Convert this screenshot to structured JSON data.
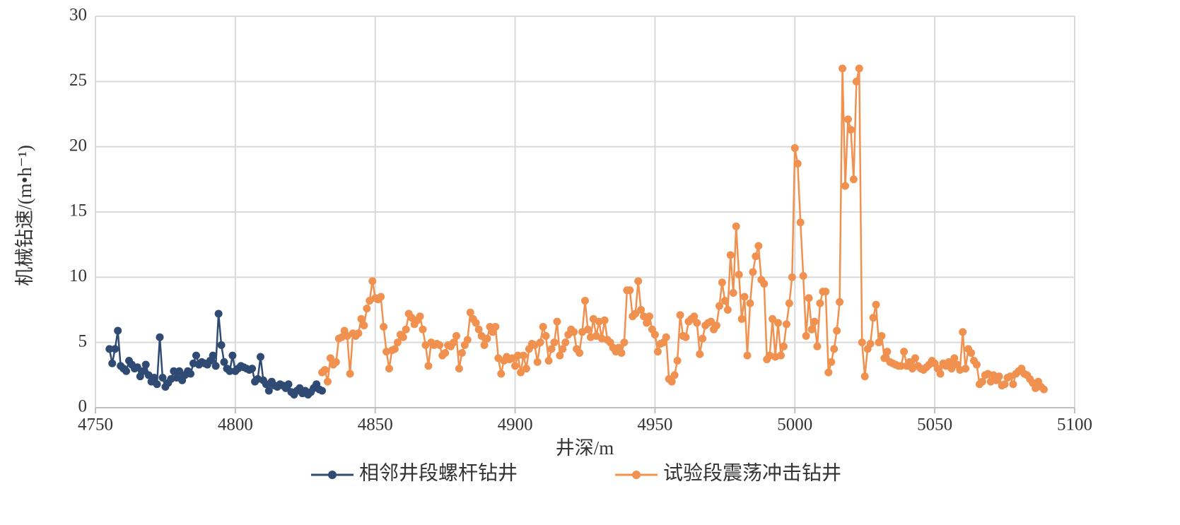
{
  "chart_data": {
    "type": "line",
    "xlabel": "井深/m",
    "ylabel": "机械钻速/(m•h⁻¹)",
    "xlim": [
      4750,
      5100
    ],
    "xticks": [
      4750,
      4800,
      4850,
      4900,
      4950,
      5000,
      5050,
      5100
    ],
    "ylim": [
      0,
      30
    ],
    "yticks": [
      0,
      5,
      10,
      15,
      20,
      25,
      30
    ],
    "grid": true,
    "legend": "bottom",
    "series": [
      {
        "name": "相邻井段螺杆钻井",
        "color": "#2f4b74",
        "x": [
          4755,
          4756,
          4757,
          4758,
          4759,
          4760,
          4761,
          4762,
          4763,
          4764,
          4765,
          4766,
          4767,
          4768,
          4769,
          4770,
          4771,
          4772,
          4773,
          4774,
          4775,
          4776,
          4777,
          4778,
          4779,
          4780,
          4781,
          4782,
          4783,
          4784,
          4785,
          4786,
          4787,
          4788,
          4789,
          4790,
          4791,
          4792,
          4793,
          4794,
          4795,
          4796,
          4797,
          4798,
          4799,
          4800,
          4801,
          4802,
          4803,
          4804,
          4805,
          4806,
          4807,
          4808,
          4809,
          4810,
          4811,
          4812,
          4813,
          4814,
          4815,
          4816,
          4817,
          4818,
          4819,
          4820,
          4821,
          4822,
          4823,
          4824,
          4825,
          4826,
          4827,
          4828,
          4829,
          4830,
          4831
        ],
        "values": [
          4.5,
          3.4,
          4.5,
          5.9,
          3.2,
          3.0,
          2.8,
          3.6,
          3.3,
          3.0,
          3.1,
          2.4,
          2.8,
          3.3,
          2.5,
          2.0,
          2.3,
          1.8,
          5.4,
          2.3,
          1.6,
          1.9,
          2.2,
          2.8,
          2.3,
          2.8,
          2.1,
          2.5,
          2.8,
          2.6,
          3.4,
          4.0,
          3.3,
          3.5,
          3.4,
          3.3,
          3.6,
          4.0,
          3.2,
          7.2,
          4.8,
          3.5,
          3.0,
          2.8,
          4.0,
          2.8,
          3.0,
          3.2,
          3.1,
          3.0,
          2.9,
          3.0,
          2.0,
          2.2,
          3.9,
          2.1,
          1.8,
          1.3,
          2.0,
          1.7,
          1.6,
          1.8,
          1.7,
          1.5,
          1.8,
          1.2,
          1.0,
          1.3,
          1.5,
          1.1,
          1.3,
          1.0,
          1.2,
          1.5,
          1.8,
          1.4,
          1.3
        ]
      },
      {
        "name": "试验段震荡冲击钻井",
        "color": "#f0914f",
        "x": [
          4831,
          4832,
          4833,
          4834,
          4835,
          4836,
          4837,
          4838,
          4839,
          4840,
          4841,
          4842,
          4843,
          4844,
          4845,
          4846,
          4847,
          4848,
          4849,
          4850,
          4851,
          4852,
          4853,
          4854,
          4855,
          4856,
          4857,
          4858,
          4859,
          4860,
          4861,
          4862,
          4863,
          4864,
          4865,
          4866,
          4867,
          4868,
          4869,
          4870,
          4871,
          4872,
          4873,
          4874,
          4875,
          4876,
          4877,
          4878,
          4879,
          4880,
          4881,
          4882,
          4883,
          4884,
          4885,
          4886,
          4887,
          4888,
          4889,
          4890,
          4891,
          4892,
          4893,
          4894,
          4895,
          4896,
          4897,
          4898,
          4899,
          4900,
          4901,
          4902,
          4903,
          4904,
          4905,
          4906,
          4907,
          4908,
          4909,
          4910,
          4911,
          4912,
          4913,
          4914,
          4915,
          4916,
          4917,
          4918,
          4919,
          4920,
          4921,
          4922,
          4923,
          4924,
          4925,
          4926,
          4927,
          4928,
          4929,
          4930,
          4931,
          4932,
          4933,
          4934,
          4935,
          4936,
          4937,
          4938,
          4939,
          4940,
          4941,
          4942,
          4943,
          4944,
          4945,
          4946,
          4947,
          4948,
          4949,
          4950,
          4951,
          4952,
          4953,
          4954,
          4955,
          4956,
          4957,
          4958,
          4959,
          4960,
          4961,
          4962,
          4963,
          4964,
          4965,
          4966,
          4967,
          4968,
          4969,
          4970,
          4971,
          4972,
          4973,
          4974,
          4975,
          4976,
          4977,
          4978,
          4979,
          4980,
          4981,
          4982,
          4983,
          4984,
          4985,
          4986,
          4987,
          4988,
          4989,
          4990,
          4991,
          4992,
          4993,
          4994,
          4995,
          4996,
          4997,
          4998,
          4999,
          5000,
          5001,
          5002,
          5003,
          5004,
          5005,
          5006,
          5007,
          5008,
          5009,
          5010,
          5011,
          5012,
          5013,
          5014,
          5015,
          5016,
          5017,
          5018,
          5019,
          5020,
          5021,
          5022,
          5023,
          5024,
          5025,
          5026,
          5027,
          5028,
          5029,
          5030,
          5031,
          5032,
          5033,
          5034,
          5035,
          5036,
          5037,
          5038,
          5039,
          5040,
          5041,
          5042,
          5043,
          5044,
          5045,
          5046,
          5047,
          5048,
          5049,
          5050,
          5051,
          5052,
          5053,
          5054,
          5055,
          5056,
          5057,
          5058,
          5059,
          5060,
          5061,
          5062,
          5063,
          5064,
          5065,
          5066,
          5067,
          5068,
          5069,
          5070,
          5071,
          5072,
          5073,
          5074,
          5075,
          5076,
          5077,
          5078,
          5079,
          5080,
          5081,
          5082,
          5083,
          5084,
          5085,
          5086,
          5087,
          5088,
          5089
        ],
        "values": [
          2.7,
          2.9,
          2.0,
          3.8,
          3.3,
          3.5,
          5.3,
          5.4,
          5.9,
          5.5,
          2.6,
          5.7,
          5.5,
          5.7,
          6.8,
          6.3,
          7.6,
          8.2,
          9.7,
          8.4,
          8.3,
          8.5,
          6.2,
          4.3,
          3.0,
          4.4,
          4.5,
          5.0,
          5.6,
          5.4,
          6.0,
          7.2,
          6.9,
          6.4,
          6.7,
          7.0,
          6.0,
          4.8,
          3.2,
          5.0,
          4.8,
          4.9,
          4.8,
          4.0,
          4.2,
          4.8,
          4.7,
          5.0,
          5.5,
          3.0,
          4.2,
          4.8,
          5.2,
          7.3,
          6.8,
          6.5,
          6.0,
          5.5,
          4.8,
          5.3,
          6.2,
          5.8,
          6.2,
          3.8,
          2.6,
          3.6,
          3.9,
          3.7,
          3.8,
          3.2,
          4.0,
          2.7,
          4.0,
          3.0,
          4.5,
          4.9,
          4.8,
          3.5,
          5.0,
          6.2,
          5.5,
          3.6,
          4.5,
          5.0,
          6.6,
          4.0,
          4.5,
          5.0,
          5.6,
          6.0,
          5.8,
          4.5,
          4.2,
          5.8,
          8.2,
          6.0,
          5.4,
          6.8,
          5.5,
          6.6,
          5.3,
          6.7,
          5.2,
          5.0,
          4.6,
          4.3,
          4.6,
          4.2,
          5.0,
          9.0,
          9.0,
          7.0,
          7.2,
          9.7,
          7.5,
          7.0,
          6.5,
          7.0,
          6.0,
          5.6,
          4.3,
          4.9,
          5.0,
          5.4,
          2.2,
          2.0,
          2.5,
          3.6,
          7.1,
          5.5,
          5.4,
          6.6,
          6.8,
          7.0,
          6.5,
          4.1,
          5.3,
          6.3,
          6.5,
          6.6,
          6.0,
          6.3,
          7.8,
          9.6,
          8.2,
          7.5,
          11.7,
          8.8,
          13.9,
          10.2,
          6.8,
          8.5,
          4.0,
          8.0,
          10.4,
          11.6,
          12.4,
          9.8,
          9.5,
          3.7,
          4.0,
          6.8,
          3.9,
          6.5,
          4.0,
          4.7,
          6.4,
          8.0,
          10.0,
          19.9,
          18.7,
          14.2,
          10.1,
          5.5,
          8.4,
          6.0,
          6.6,
          4.7,
          8.0,
          8.9,
          8.9,
          2.7,
          3.5,
          4.5,
          5.9,
          8.1,
          26.0,
          17.0,
          22.1,
          21.3,
          17.5,
          25.0,
          26.0,
          5.0,
          2.4,
          4.5,
          4.9,
          6.9,
          7.9,
          5.0,
          5.5,
          3.8,
          4.3,
          3.5,
          3.4,
          3.3,
          3.2,
          3.2,
          4.3,
          3.2,
          3.5,
          3.0,
          3.8,
          3.2,
          3.0,
          2.9,
          3.1,
          3.3,
          3.6,
          3.4,
          3.0,
          2.6,
          3.4,
          3.2,
          3.5,
          3.0,
          3.8,
          3.3,
          2.9,
          5.8,
          3.0,
          4.5,
          4.2,
          3.6,
          3.3,
          1.8,
          2.0,
          2.5,
          2.6,
          2.0,
          2.5,
          2.1,
          2.4,
          1.7,
          1.8,
          2.3,
          2.4,
          1.8,
          2.6,
          2.8,
          3.0,
          2.6,
          2.5,
          2.2,
          1.9,
          1.5,
          2.0,
          1.6,
          1.4
        ]
      }
    ]
  }
}
